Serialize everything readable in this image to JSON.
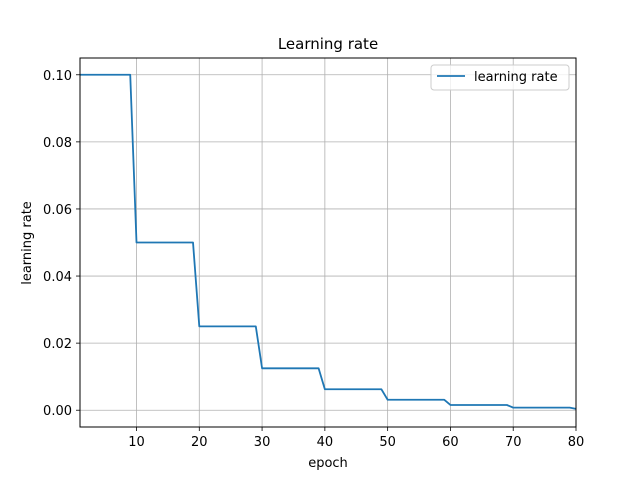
{
  "chart_data": {
    "type": "line",
    "title": "Learning rate",
    "xlabel": "epoch",
    "ylabel": "learning rate",
    "xlim": [
      1,
      80
    ],
    "ylim": [
      -0.005,
      0.105
    ],
    "x_ticks": [
      10,
      20,
      30,
      40,
      50,
      60,
      70,
      80
    ],
    "y_ticks": [
      0.0,
      0.02,
      0.04,
      0.06,
      0.08,
      0.1
    ],
    "x_tick_labels": [
      "10",
      "20",
      "30",
      "40",
      "50",
      "60",
      "70",
      "80"
    ],
    "y_tick_labels": [
      "0.00",
      "0.02",
      "0.04",
      "0.06",
      "0.08",
      "0.10"
    ],
    "grid": true,
    "legend_position": "top-right",
    "colors": {
      "series": "#1f77b4",
      "grid": "#b0b0b0",
      "legend_border": "#cccccc"
    },
    "series": [
      {
        "name": "learning rate",
        "x": [
          1,
          9,
          10,
          19,
          20,
          29,
          30,
          39,
          40,
          49,
          50,
          59,
          60,
          69,
          70,
          79,
          80
        ],
        "y": [
          0.1,
          0.1,
          0.05,
          0.05,
          0.025,
          0.025,
          0.0125,
          0.0125,
          0.00625,
          0.00625,
          0.003125,
          0.003125,
          0.0015625,
          0.0015625,
          0.00078125,
          0.00078125,
          0.000390625
        ]
      }
    ]
  }
}
